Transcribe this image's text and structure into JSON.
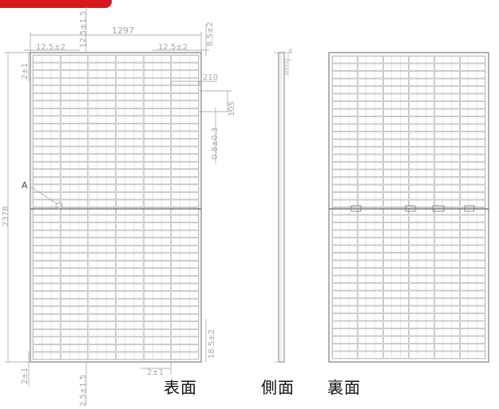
{
  "colors": {
    "accent": "#d7191d",
    "panel_line": "#8c8c8c",
    "dimension_line": "#9a9a9a",
    "dimension_text": "#a6a6a6",
    "label_text": "#111111"
  },
  "dimensions": {
    "overall_width": "1297",
    "overall_height": "2378",
    "left_margin_top": "12.5±2",
    "right_margin_top": "12.5±2",
    "top_offset_vertical": "12.5±1.5",
    "right_top_vertical": "8.5±2",
    "top_left_vertical": "2±1",
    "cell_width": "210",
    "cell_height": "105",
    "cell_gap": "0.8±0.3",
    "bottom_left_vertical": "2±1",
    "bottom_offset_vertical": "2.5±1.5",
    "bottom_gap": "2±1",
    "bottom_right_vertical": "18.5±2",
    "detail_marker": "A",
    "side_top_small": "35",
    "side_frame_small": "30±0.5"
  },
  "views": {
    "front": "表面",
    "side": "側面",
    "back": "裏面"
  }
}
